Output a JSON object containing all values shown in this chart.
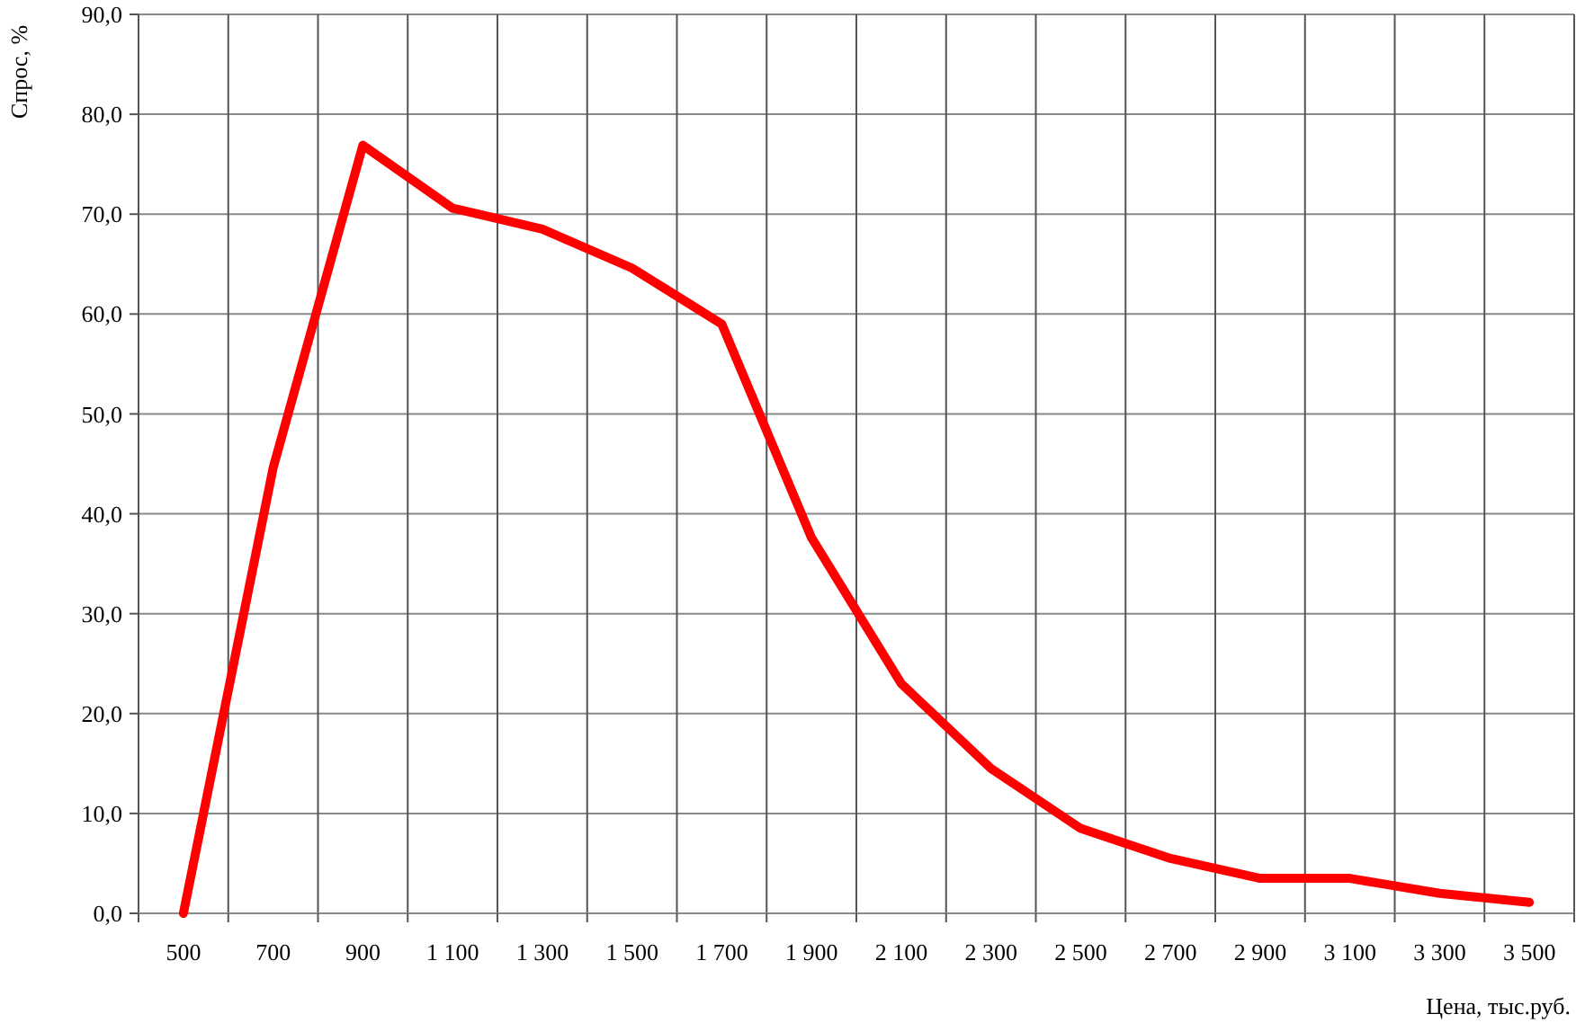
{
  "chart_data": {
    "type": "line",
    "xlabel": "Цена, тыс.руб.",
    "ylabel": "Спрос, %",
    "categories": [
      "500",
      "700",
      "900",
      "1 100",
      "1 300",
      "1 500",
      "1 700",
      "1 900",
      "2 100",
      "2 300",
      "2 500",
      "2 700",
      "2 900",
      "3 100",
      "3 300",
      "3 500"
    ],
    "series": [
      {
        "color": "#ff0000",
        "values": [
          0,
          44.6,
          76.9,
          70.6,
          68.5,
          64.6,
          59.0,
          37.6,
          23.0,
          14.5,
          8.5,
          5.5,
          3.5,
          3.5,
          2.0,
          1.1
        ]
      }
    ],
    "ylim": [
      0,
      90
    ],
    "yticks": [
      {
        "value": 0,
        "label": "0,0"
      },
      {
        "value": 10,
        "label": "10,0"
      },
      {
        "value": 20,
        "label": "20,0"
      },
      {
        "value": 30,
        "label": "30,0"
      },
      {
        "value": 40,
        "label": "40,0"
      },
      {
        "value": 50,
        "label": "50,0"
      },
      {
        "value": 60,
        "label": "60,0"
      },
      {
        "value": 70,
        "label": "70,0"
      },
      {
        "value": 80,
        "label": "80,0"
      },
      {
        "value": 90,
        "label": "90,0"
      }
    ],
    "grid": true,
    "marker": "none",
    "line_style": "solid"
  }
}
